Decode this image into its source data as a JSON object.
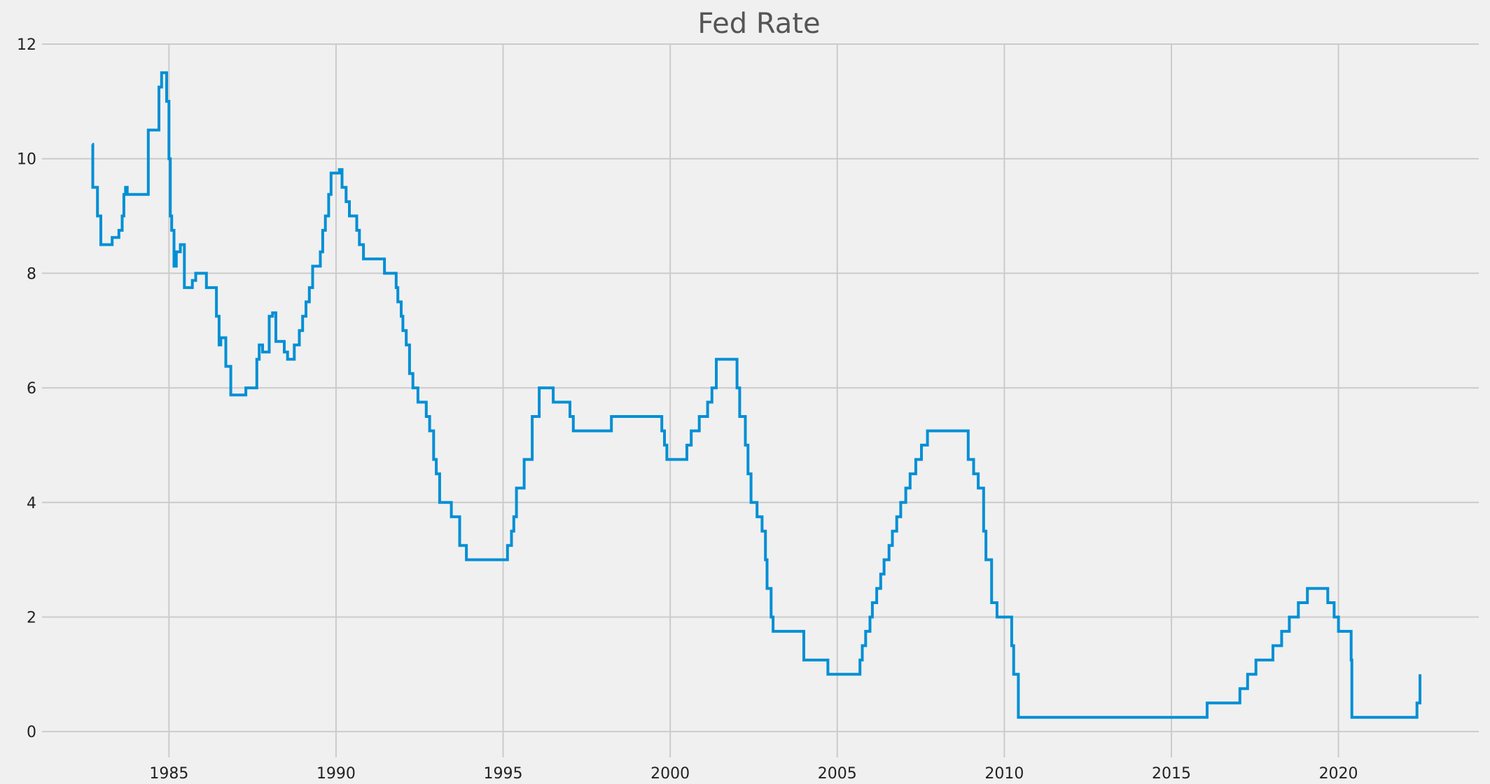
{
  "chart_data": {
    "type": "line",
    "title": "Fed Rate",
    "xlabel": "",
    "ylabel": "",
    "xlim": [
      1981.2,
      2024.2
    ],
    "ylim": [
      -0.45,
      12
    ],
    "x_ticks": [
      1985,
      1990,
      1995,
      2000,
      2005,
      2010,
      2015,
      2020
    ],
    "y_ticks": [
      0,
      2,
      4,
      6,
      8,
      10,
      12
    ],
    "grid": true,
    "line_color": "#008fd5",
    "series": [
      {
        "step": true,
        "points": [
          [
            1982.7,
            10.25
          ],
          [
            1982.72,
            9.5
          ],
          [
            1982.86,
            9.0
          ],
          [
            1982.96,
            8.5
          ],
          [
            1983.3,
            8.625
          ],
          [
            1983.5,
            8.75
          ],
          [
            1983.6,
            9.0
          ],
          [
            1983.65,
            9.375
          ],
          [
            1983.7,
            9.5
          ],
          [
            1983.75,
            9.375
          ],
          [
            1984.38,
            10.5
          ],
          [
            1984.7,
            11.25
          ],
          [
            1984.78,
            11.5
          ],
          [
            1984.93,
            11.0
          ],
          [
            1985.0,
            10.0
          ],
          [
            1985.04,
            9.0
          ],
          [
            1985.08,
            8.75
          ],
          [
            1985.15,
            8.125
          ],
          [
            1985.22,
            8.375
          ],
          [
            1985.34,
            8.5
          ],
          [
            1985.46,
            7.75
          ],
          [
            1985.7,
            7.875
          ],
          [
            1985.8,
            8.0
          ],
          [
            1986.12,
            7.75
          ],
          [
            1986.42,
            7.25
          ],
          [
            1986.5,
            6.75
          ],
          [
            1986.55,
            6.875
          ],
          [
            1986.7,
            6.375
          ],
          [
            1986.85,
            5.875
          ],
          [
            1987.3,
            6.0
          ],
          [
            1987.63,
            6.5
          ],
          [
            1987.7,
            6.75
          ],
          [
            1987.8,
            6.625
          ],
          [
            1988.0,
            7.25
          ],
          [
            1988.1,
            7.31
          ],
          [
            1988.2,
            6.81
          ],
          [
            1988.45,
            6.625
          ],
          [
            1988.55,
            6.5
          ],
          [
            1988.75,
            6.75
          ],
          [
            1988.9,
            7.0
          ],
          [
            1989.0,
            7.25
          ],
          [
            1989.1,
            7.5
          ],
          [
            1989.2,
            7.75
          ],
          [
            1989.3,
            8.125
          ],
          [
            1989.53,
            8.375
          ],
          [
            1989.6,
            8.75
          ],
          [
            1989.68,
            9.0
          ],
          [
            1989.78,
            9.375
          ],
          [
            1989.85,
            9.75
          ],
          [
            1990.1,
            9.81
          ],
          [
            1990.18,
            9.5
          ],
          [
            1990.3,
            9.25
          ],
          [
            1990.4,
            9.0
          ],
          [
            1990.62,
            8.75
          ],
          [
            1990.7,
            8.5
          ],
          [
            1990.82,
            8.25
          ],
          [
            1991.45,
            8.0
          ],
          [
            1991.8,
            7.75
          ],
          [
            1991.85,
            7.5
          ],
          [
            1991.95,
            7.25
          ],
          [
            1992.0,
            7.0
          ],
          [
            1992.1,
            6.75
          ],
          [
            1992.2,
            6.25
          ],
          [
            1992.3,
            6.0
          ],
          [
            1992.45,
            5.75
          ],
          [
            1992.7,
            5.5
          ],
          [
            1992.8,
            5.25
          ],
          [
            1992.92,
            4.75
          ],
          [
            1993.0,
            4.5
          ],
          [
            1993.1,
            4.0
          ],
          [
            1993.45,
            3.75
          ],
          [
            1993.7,
            3.25
          ],
          [
            1993.9,
            3.0
          ],
          [
            1995.13,
            3.25
          ],
          [
            1995.25,
            3.5
          ],
          [
            1995.32,
            3.75
          ],
          [
            1995.4,
            4.25
          ],
          [
            1995.63,
            4.75
          ],
          [
            1995.87,
            5.5
          ],
          [
            1996.08,
            6.0
          ],
          [
            1996.5,
            5.75
          ],
          [
            1997.0,
            5.5
          ],
          [
            1997.1,
            5.25
          ],
          [
            1998.24,
            5.5
          ],
          [
            1999.75,
            5.25
          ],
          [
            1999.83,
            5.0
          ],
          [
            1999.9,
            4.75
          ],
          [
            2000.5,
            5.0
          ],
          [
            2000.63,
            5.25
          ],
          [
            2000.87,
            5.5
          ],
          [
            2001.12,
            5.75
          ],
          [
            2001.25,
            6.0
          ],
          [
            2001.38,
            6.5
          ],
          [
            2002.0,
            6.0
          ],
          [
            2002.08,
            5.5
          ],
          [
            2002.25,
            5.0
          ],
          [
            2002.33,
            4.5
          ],
          [
            2002.42,
            4.0
          ],
          [
            2002.6,
            3.75
          ],
          [
            2002.75,
            3.5
          ],
          [
            2002.85,
            3.0
          ],
          [
            2002.9,
            2.5
          ],
          [
            2003.02,
            2.0
          ],
          [
            2003.08,
            1.75
          ],
          [
            2004.0,
            1.25
          ],
          [
            2004.72,
            1.0
          ],
          [
            2005.68,
            1.25
          ],
          [
            2005.75,
            1.5
          ],
          [
            2005.85,
            1.75
          ],
          [
            2005.98,
            2.0
          ],
          [
            2006.05,
            2.25
          ],
          [
            2006.18,
            2.5
          ],
          [
            2006.3,
            2.75
          ],
          [
            2006.4,
            3.0
          ],
          [
            2006.55,
            3.25
          ],
          [
            2006.65,
            3.5
          ],
          [
            2006.78,
            3.75
          ],
          [
            2006.9,
            4.0
          ],
          [
            2007.05,
            4.25
          ],
          [
            2007.18,
            4.5
          ],
          [
            2007.35,
            4.75
          ],
          [
            2007.52,
            5.0
          ],
          [
            2007.7,
            5.25
          ],
          [
            2008.92,
            4.75
          ],
          [
            2009.08,
            4.5
          ],
          [
            2009.22,
            4.25
          ],
          [
            2009.38,
            3.5
          ],
          [
            2009.45,
            3.0
          ],
          [
            2009.62,
            2.25
          ],
          [
            2009.78,
            2.0
          ],
          [
            2010.22,
            1.5
          ],
          [
            2010.28,
            1.0
          ],
          [
            2010.42,
            0.25
          ],
          [
            2016.07,
            0.5
          ],
          [
            2017.05,
            0.75
          ],
          [
            2017.28,
            1.0
          ],
          [
            2017.53,
            1.25
          ],
          [
            2018.04,
            1.5
          ],
          [
            2018.3,
            1.75
          ],
          [
            2018.53,
            2.0
          ],
          [
            2018.8,
            2.25
          ],
          [
            2019.07,
            2.5
          ],
          [
            2019.68,
            2.25
          ],
          [
            2019.87,
            2.0
          ],
          [
            2020.0,
            1.75
          ],
          [
            2020.38,
            1.25
          ],
          [
            2020.4,
            0.25
          ],
          [
            2022.35,
            0.5
          ],
          [
            2022.44,
            1.0
          ]
        ]
      }
    ]
  }
}
